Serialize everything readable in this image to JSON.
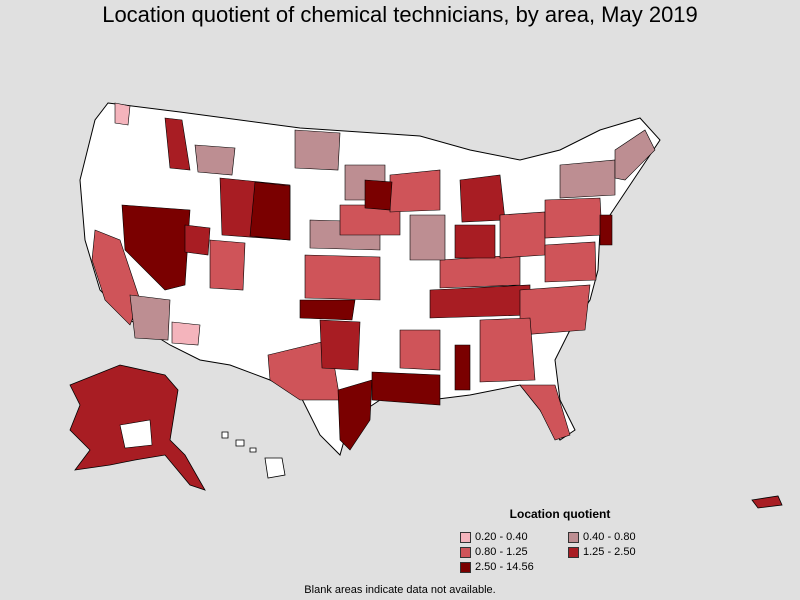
{
  "title": "Location quotient of chemical technicians, by area, May 2019",
  "legend": {
    "title": "Location quotient",
    "items": [
      {
        "label": "0.20 - 0.40",
        "color": "#f4b4bc"
      },
      {
        "label": "0.40 - 0.80",
        "color": "#bd8e92"
      },
      {
        "label": "0.80 - 1.25",
        "color": "#cf5459"
      },
      {
        "label": "1.25 - 2.50",
        "color": "#a81d23"
      },
      {
        "label": "2.50 - 14.56",
        "color": "#7a0000"
      }
    ]
  },
  "footnote": "Blank areas indicate data not available.",
  "colors": {
    "background": "#e0e0e0",
    "blank": "#ffffff",
    "border": "#000000"
  }
}
